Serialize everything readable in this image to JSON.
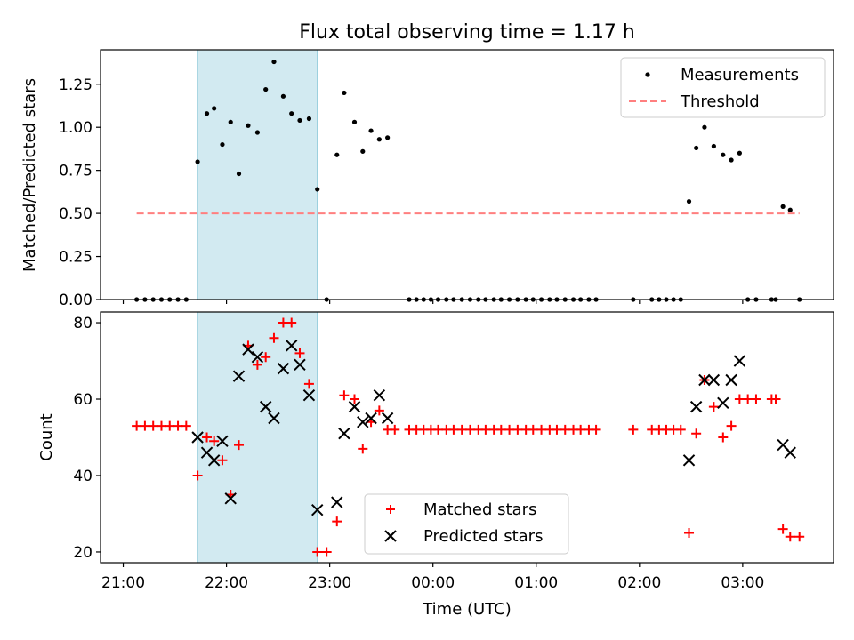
{
  "title": "Flux total observing time = 1.17 h",
  "colors": {
    "shade": "#add8e6",
    "threshold": "#ff7f7f",
    "matched": "#ff0000",
    "predicted": "#000000",
    "measurement": "#000000"
  },
  "x_ticks": [
    "21:00",
    "22:00",
    "23:00",
    "00:00",
    "01:00",
    "02:00",
    "03:00"
  ],
  "x_tick_hours": [
    21.0,
    22.0,
    23.0,
    24.0,
    25.0,
    26.0,
    27.0
  ],
  "chart_data": [
    {
      "type": "scatter",
      "panel": "top",
      "xlabel": "",
      "ylabel": "Matched/Predicted stars",
      "xlim_hours": [
        20.78,
        27.88
      ],
      "ylim": [
        0,
        1.45
      ],
      "y_ticks": [
        "0.00",
        "0.25",
        "0.50",
        "0.75",
        "1.00",
        "1.25"
      ],
      "y_tick_values": [
        0.0,
        0.25,
        0.5,
        0.75,
        1.0,
        1.25
      ],
      "legend": {
        "placement": "top-right",
        "entries": [
          "Measurements",
          "Threshold"
        ]
      },
      "shaded_region_hours": [
        21.72,
        22.88
      ],
      "threshold": {
        "name": "Threshold",
        "value": 0.5,
        "x_hours": [
          21.13,
          27.55
        ]
      },
      "series": [
        {
          "name": "Measurements",
          "marker": "dot",
          "points": [
            [
              21.13,
              0
            ],
            [
              21.21,
              0
            ],
            [
              21.29,
              0
            ],
            [
              21.37,
              0
            ],
            [
              21.45,
              0
            ],
            [
              21.53,
              0
            ],
            [
              21.61,
              0
            ],
            [
              21.72,
              0.8
            ],
            [
              21.81,
              1.08
            ],
            [
              21.88,
              1.11
            ],
            [
              21.96,
              0.9
            ],
            [
              22.04,
              1.03
            ],
            [
              22.12,
              0.73
            ],
            [
              22.21,
              1.01
            ],
            [
              22.3,
              0.97
            ],
            [
              22.38,
              1.22
            ],
            [
              22.46,
              1.38
            ],
            [
              22.55,
              1.18
            ],
            [
              22.63,
              1.08
            ],
            [
              22.71,
              1.04
            ],
            [
              22.8,
              1.05
            ],
            [
              22.88,
              0.64
            ],
            [
              22.97,
              0
            ],
            [
              23.07,
              0.84
            ],
            [
              23.14,
              1.2
            ],
            [
              23.24,
              1.03
            ],
            [
              23.32,
              0.86
            ],
            [
              23.4,
              0.98
            ],
            [
              23.48,
              0.93
            ],
            [
              23.56,
              0.94
            ],
            [
              23.77,
              0
            ],
            [
              23.84,
              0
            ],
            [
              23.91,
              0
            ],
            [
              23.98,
              0
            ],
            [
              24.05,
              0
            ],
            [
              24.13,
              0
            ],
            [
              24.2,
              0
            ],
            [
              24.28,
              0
            ],
            [
              24.36,
              0
            ],
            [
              24.44,
              0
            ],
            [
              24.51,
              0
            ],
            [
              24.59,
              0
            ],
            [
              24.66,
              0
            ],
            [
              24.74,
              0
            ],
            [
              24.82,
              0
            ],
            [
              24.9,
              0
            ],
            [
              24.97,
              0
            ],
            [
              25.05,
              0
            ],
            [
              25.13,
              0
            ],
            [
              25.2,
              0
            ],
            [
              25.28,
              0
            ],
            [
              25.36,
              0
            ],
            [
              25.43,
              0
            ],
            [
              25.51,
              0
            ],
            [
              25.58,
              0
            ],
            [
              25.94,
              0
            ],
            [
              26.12,
              0
            ],
            [
              26.19,
              0
            ],
            [
              26.26,
              0
            ],
            [
              26.33,
              0
            ],
            [
              26.4,
              0
            ],
            [
              26.48,
              0.57
            ],
            [
              26.55,
              0.88
            ],
            [
              26.63,
              1.0
            ],
            [
              26.72,
              0.89
            ],
            [
              26.81,
              0.84
            ],
            [
              26.89,
              0.81
            ],
            [
              26.97,
              0.85
            ],
            [
              27.05,
              0
            ],
            [
              27.13,
              0
            ],
            [
              27.28,
              0
            ],
            [
              27.32,
              0
            ],
            [
              27.39,
              0.54
            ],
            [
              27.46,
              0.52
            ],
            [
              27.55,
              0
            ]
          ]
        }
      ]
    },
    {
      "type": "scatter",
      "panel": "bottom",
      "xlabel": "Time (UTC)",
      "ylabel": "Count",
      "xlim_hours": [
        20.78,
        27.88
      ],
      "ylim": [
        17.2,
        82.8
      ],
      "y_ticks": [
        "20",
        "40",
        "60",
        "80"
      ],
      "y_tick_values": [
        20,
        40,
        60,
        80
      ],
      "legend": {
        "placement": "lower-center",
        "entries": [
          "Matched stars",
          "Predicted stars"
        ]
      },
      "shaded_region_hours": [
        21.72,
        22.88
      ],
      "series": [
        {
          "name": "Matched stars",
          "marker": "plus",
          "points": [
            [
              21.13,
              53
            ],
            [
              21.21,
              53
            ],
            [
              21.29,
              53
            ],
            [
              21.37,
              53
            ],
            [
              21.45,
              53
            ],
            [
              21.53,
              53
            ],
            [
              21.61,
              53
            ],
            [
              21.72,
              40
            ],
            [
              21.81,
              50
            ],
            [
              21.88,
              49
            ],
            [
              21.96,
              44
            ],
            [
              22.04,
              35
            ],
            [
              22.12,
              48
            ],
            [
              22.21,
              74
            ],
            [
              22.3,
              69
            ],
            [
              22.38,
              71
            ],
            [
              22.46,
              76
            ],
            [
              22.55,
              80
            ],
            [
              22.63,
              80
            ],
            [
              22.71,
              72
            ],
            [
              22.8,
              64
            ],
            [
              22.88,
              20
            ],
            [
              22.97,
              20
            ],
            [
              23.07,
              28
            ],
            [
              23.14,
              61
            ],
            [
              23.24,
              60
            ],
            [
              23.32,
              47
            ],
            [
              23.4,
              54
            ],
            [
              23.48,
              57
            ],
            [
              23.56,
              52
            ],
            [
              23.63,
              52
            ],
            [
              23.77,
              52
            ],
            [
              23.84,
              52
            ],
            [
              23.91,
              52
            ],
            [
              23.98,
              52
            ],
            [
              24.05,
              52
            ],
            [
              24.13,
              52
            ],
            [
              24.2,
              52
            ],
            [
              24.28,
              52
            ],
            [
              24.36,
              52
            ],
            [
              24.44,
              52
            ],
            [
              24.51,
              52
            ],
            [
              24.59,
              52
            ],
            [
              24.66,
              52
            ],
            [
              24.74,
              52
            ],
            [
              24.82,
              52
            ],
            [
              24.9,
              52
            ],
            [
              24.97,
              52
            ],
            [
              25.05,
              52
            ],
            [
              25.13,
              52
            ],
            [
              25.2,
              52
            ],
            [
              25.28,
              52
            ],
            [
              25.36,
              52
            ],
            [
              25.43,
              52
            ],
            [
              25.51,
              52
            ],
            [
              25.58,
              52
            ],
            [
              25.94,
              52
            ],
            [
              26.12,
              52
            ],
            [
              26.19,
              52
            ],
            [
              26.26,
              52
            ],
            [
              26.33,
              52
            ],
            [
              26.4,
              52
            ],
            [
              26.48,
              25
            ],
            [
              26.55,
              51
            ],
            [
              26.63,
              65
            ],
            [
              26.72,
              58
            ],
            [
              26.81,
              50
            ],
            [
              26.89,
              53
            ],
            [
              26.97,
              60
            ],
            [
              27.05,
              60
            ],
            [
              27.13,
              60
            ],
            [
              27.28,
              60
            ],
            [
              27.32,
              60
            ],
            [
              27.39,
              26
            ],
            [
              27.46,
              24
            ],
            [
              27.55,
              24
            ]
          ]
        },
        {
          "name": "Predicted stars",
          "marker": "x",
          "points": [
            [
              21.72,
              50
            ],
            [
              21.81,
              46
            ],
            [
              21.88,
              44
            ],
            [
              21.96,
              49
            ],
            [
              22.04,
              34
            ],
            [
              22.12,
              66
            ],
            [
              22.21,
              73
            ],
            [
              22.3,
              71
            ],
            [
              22.38,
              58
            ],
            [
              22.46,
              55
            ],
            [
              22.55,
              68
            ],
            [
              22.63,
              74
            ],
            [
              22.71,
              69
            ],
            [
              22.8,
              61
            ],
            [
              22.88,
              31
            ],
            [
              23.07,
              33
            ],
            [
              23.14,
              51
            ],
            [
              23.24,
              58
            ],
            [
              23.32,
              54
            ],
            [
              23.4,
              55
            ],
            [
              23.48,
              61
            ],
            [
              23.56,
              55
            ],
            [
              26.48,
              44
            ],
            [
              26.55,
              58
            ],
            [
              26.63,
              65
            ],
            [
              26.72,
              65
            ],
            [
              26.81,
              59
            ],
            [
              26.89,
              65
            ],
            [
              26.97,
              70
            ],
            [
              27.39,
              48
            ],
            [
              27.46,
              46
            ]
          ]
        }
      ]
    }
  ]
}
